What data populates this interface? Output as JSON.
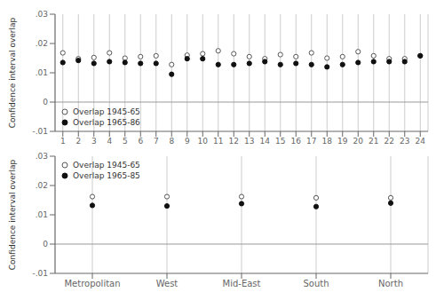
{
  "chart_data": [
    {
      "type": "scatter",
      "x": [
        1,
        2,
        3,
        4,
        5,
        6,
        7,
        8,
        9,
        10,
        11,
        12,
        13,
        14,
        15,
        16,
        17,
        18,
        19,
        20,
        21,
        22,
        23,
        24
      ],
      "series": [
        {
          "name": "Overlap 1945-65",
          "color": "#555555",
          "marker": "open_circle",
          "values": [
            0.0168,
            0.0148,
            0.0152,
            0.0168,
            0.015,
            0.0155,
            0.0158,
            0.0128,
            0.016,
            0.0165,
            0.0175,
            0.0165,
            0.0155,
            0.0148,
            0.0162,
            0.0155,
            0.0168,
            0.015,
            0.0155,
            0.0172,
            0.0158,
            0.0148,
            0.0148,
            0.0158
          ]
        },
        {
          "name": "Overlap 1965-86",
          "color": "#111111",
          "marker": "circle",
          "values": [
            0.0135,
            0.0142,
            0.0132,
            0.0138,
            0.0135,
            0.0132,
            0.0132,
            0.0095,
            0.0148,
            0.0148,
            0.0128,
            0.0128,
            0.0132,
            0.0138,
            0.0128,
            0.0132,
            0.0128,
            0.012,
            0.0128,
            0.0135,
            0.0138,
            0.0138,
            0.0138,
            0.0158
          ]
        }
      ],
      "xlim": [
        0.5,
        24.5
      ],
      "xticks": [
        1,
        2,
        3,
        4,
        5,
        6,
        7,
        8,
        9,
        10,
        11,
        12,
        13,
        14,
        15,
        16,
        17,
        18,
        19,
        20,
        21,
        22,
        23,
        24
      ],
      "ylim": [
        -0.01,
        0.03
      ],
      "yticks": [
        {
          "value": -0.01,
          "label": "-.01"
        },
        0,
        {
          "value": 0.01,
          "label": ".01"
        },
        {
          "value": 0.02,
          "label": ".02"
        },
        {
          "value": 0.03,
          "label": ".03"
        }
      ],
      "y_label": "Confidence interval overlap",
      "grid": "x",
      "legend": "lower left"
    },
    {
      "type": "scatter",
      "categories": [
        "Metropolitan",
        "West",
        "Mid-East",
        "South",
        "North"
      ],
      "series": [
        {
          "name": "Overlap 1945-65",
          "color": "#555555",
          "marker": "open_circle",
          "values": [
            0.0162,
            0.0162,
            0.0162,
            0.0158,
            0.0158
          ]
        },
        {
          "name": "Overlap 1965-85",
          "color": "#111111",
          "marker": "circle",
          "values": [
            0.0132,
            0.013,
            0.0138,
            0.0128,
            0.014
          ]
        }
      ],
      "ylim": [
        -0.01,
        0.03
      ],
      "yticks": [
        {
          "value": -0.01,
          "label": "-.01"
        },
        0,
        {
          "value": 0.01,
          "label": ".01"
        },
        {
          "value": 0.02,
          "label": ".02"
        },
        {
          "value": 0.03,
          "label": ".03"
        }
      ],
      "y_label": "Confidence interval overlap",
      "grid": "x",
      "legend": "upper left"
    }
  ]
}
